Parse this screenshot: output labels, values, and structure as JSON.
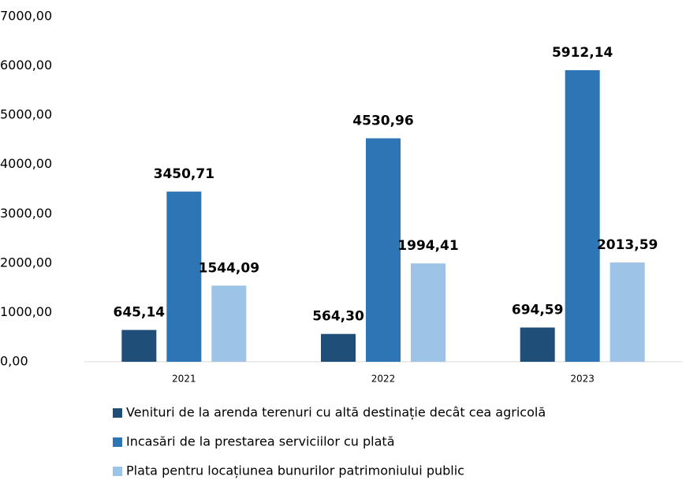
{
  "chart_data": {
    "type": "bar",
    "categories": [
      "2021",
      "2022",
      "2023"
    ],
    "series": [
      {
        "name": "Venituri de la arenda terenuri cu altă destinație decât cea agricolă",
        "color": "#1f4e79",
        "values": [
          645.14,
          564.3,
          694.59
        ],
        "value_labels": [
          "645,14",
          "564,30",
          "694,59"
        ]
      },
      {
        "name": "Incasări de la prestarea serviciilor cu plată",
        "color": "#2e75b6",
        "values": [
          3450.71,
          4530.96,
          5912.14
        ],
        "value_labels": [
          "3450,71",
          "4530,96",
          "5912,14"
        ]
      },
      {
        "name": "Plata pentru locațiunea bunurilor patrimoniului public",
        "color": "#9dc3e6",
        "values": [
          1544.09,
          1994.41,
          2013.59
        ],
        "value_labels": [
          "1544,09",
          "1994,41",
          "2013,59"
        ]
      }
    ],
    "ylim": [
      0,
      7000
    ],
    "yticks": [
      {
        "value": 0,
        "label": "0,00"
      },
      {
        "value": 1000,
        "label": "1000,00"
      },
      {
        "value": 2000,
        "label": "2000,00"
      },
      {
        "value": 3000,
        "label": "3000,00"
      },
      {
        "value": 4000,
        "label": "4000,00"
      },
      {
        "value": 5000,
        "label": "5000,00"
      },
      {
        "value": 6000,
        "label": "6000,00"
      },
      {
        "value": 7000,
        "label": "7000,00"
      }
    ],
    "grid": false,
    "legend": "bottom"
  }
}
